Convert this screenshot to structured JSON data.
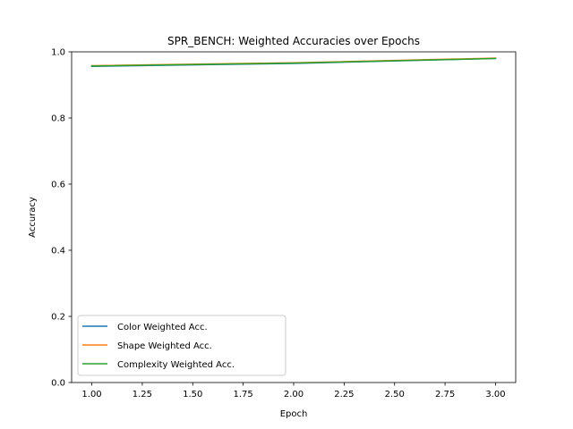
{
  "chart_data": {
    "type": "line",
    "title": "SPR_BENCH: Weighted Accuracies over Epochs",
    "xlabel": "Epoch",
    "ylabel": "Accuracy",
    "xlim": [
      0.9,
      3.1
    ],
    "ylim": [
      0.0,
      1.0
    ],
    "x_ticks": [
      "1.00",
      "1.25",
      "1.50",
      "1.75",
      "2.00",
      "2.25",
      "2.50",
      "2.75",
      "3.00"
    ],
    "y_ticks": [
      "0.0",
      "0.2",
      "0.4",
      "0.6",
      "0.8",
      "1.0"
    ],
    "x": [
      1,
      2,
      3
    ],
    "series": [
      {
        "name": "Color Weighted Acc.",
        "color": "#1f77b4",
        "values": [
          0.956,
          0.965,
          0.98
        ]
      },
      {
        "name": "Shape Weighted Acc.",
        "color": "#ff7f0e",
        "values": [
          0.958,
          0.967,
          0.981
        ]
      },
      {
        "name": "Complexity Weighted Acc.",
        "color": "#2ca02c",
        "values": [
          0.957,
          0.966,
          0.98
        ]
      }
    ],
    "grid": false,
    "legend_position": "lower-left"
  }
}
